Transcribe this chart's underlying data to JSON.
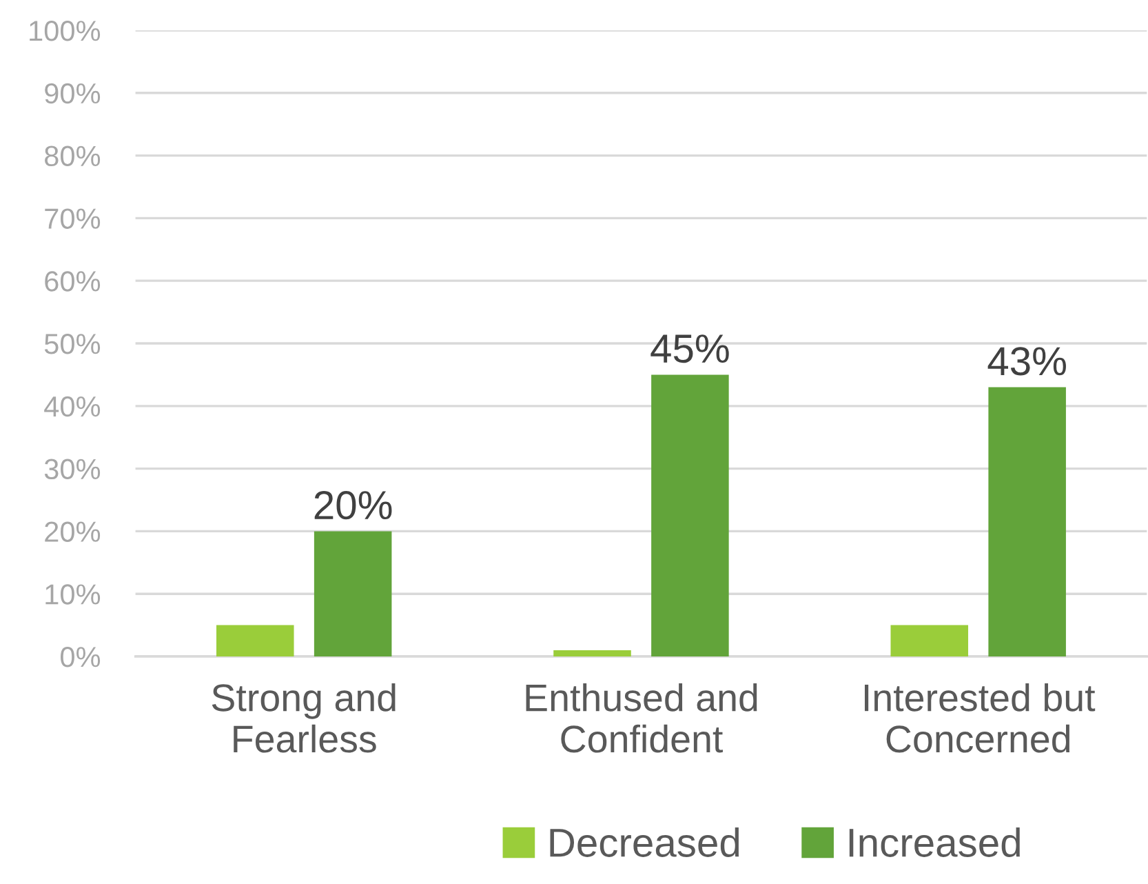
{
  "chart_data": {
    "type": "bar",
    "categories": [
      "Strong and\nFearless",
      "Enthused and\nConfident",
      "Interested but\nConcerned"
    ],
    "series": [
      {
        "name": "Decreased",
        "color": "#9acd3a",
        "values": [
          5,
          1,
          5
        ]
      },
      {
        "name": "Increased",
        "color": "#62a43a",
        "values": [
          20,
          45,
          43
        ],
        "value_labels": [
          "20%",
          "45%",
          "43%"
        ]
      }
    ],
    "ylim": [
      0,
      100
    ],
    "yticks": [
      {
        "value": 0,
        "label": "0%"
      },
      {
        "value": 10,
        "label": "10%"
      },
      {
        "value": 20,
        "label": "20%"
      },
      {
        "value": 30,
        "label": "30%"
      },
      {
        "value": 40,
        "label": "40%"
      },
      {
        "value": 50,
        "label": "50%"
      },
      {
        "value": 60,
        "label": "60%"
      },
      {
        "value": 70,
        "label": "70%"
      },
      {
        "value": 80,
        "label": "80%"
      },
      {
        "value": 90,
        "label": "90%"
      },
      {
        "value": 100,
        "label": "100%"
      }
    ],
    "grid": "y",
    "legend": "bottom"
  }
}
